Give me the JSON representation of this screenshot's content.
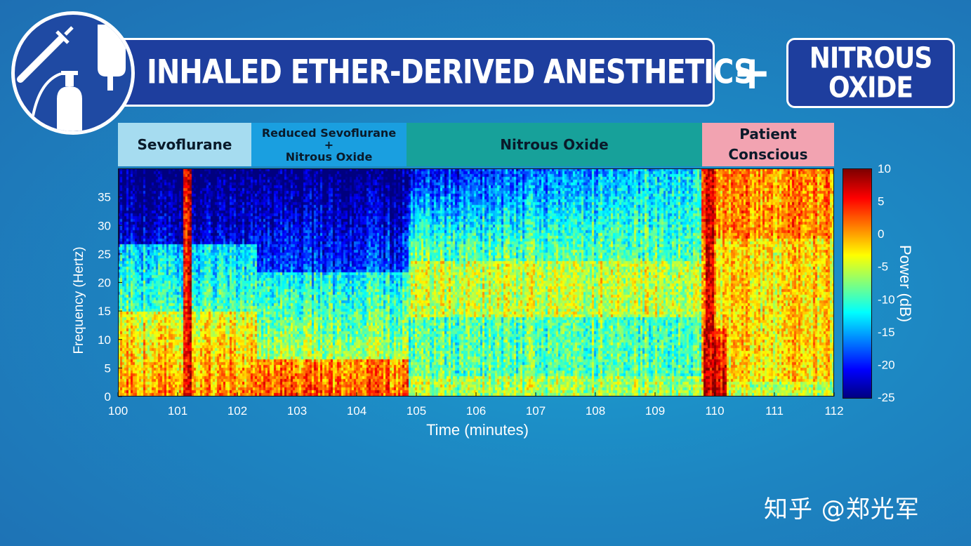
{
  "header": {
    "title": "INHALED ETHER-DERIVED ANESTHETICS",
    "plus": "+",
    "nitrous_line1": "NITROUS",
    "nitrous_line2": "OXIDE"
  },
  "logo": {
    "icons": [
      "syringe-icon",
      "iv-bag-icon",
      "gas-cylinder-icon"
    ]
  },
  "phases": [
    {
      "line1": "Sevoflurane",
      "line2": "",
      "line3": "",
      "color": "#a6dcf0"
    },
    {
      "line1": "Reduced Sevoflurane",
      "line2": "+",
      "line3": "Nitrous Oxide",
      "color": "#1a9fe0"
    },
    {
      "line1": "Nitrous Oxide",
      "line2": "",
      "line3": "",
      "color": "#17a19a"
    },
    {
      "line1": "Patient",
      "line2": "Conscious",
      "line3": "",
      "color": "#f2a3b1"
    }
  ],
  "chart_data": {
    "type": "heatmap",
    "xlabel": "Time (minutes)",
    "ylabel": "Frequency (Hertz)",
    "xlim": [
      100,
      112
    ],
    "ylim": [
      0,
      40
    ],
    "x_ticks": [
      100,
      101,
      102,
      103,
      104,
      105,
      106,
      107,
      108,
      109,
      110,
      111,
      112
    ],
    "y_ticks": [
      0,
      5,
      10,
      15,
      20,
      25,
      30,
      35
    ],
    "colorbar": {
      "label": "Power (dB)",
      "ticks": [
        10,
        5,
        0,
        -5,
        -10,
        -15,
        -20,
        -25
      ],
      "range": [
        -25,
        10
      ],
      "colormap": "jet"
    },
    "phase_boundaries": [
      {
        "label": "Sevoflurane",
        "start": 100.0,
        "end": 102.25
      },
      {
        "label": "Reduced Sevoflurane + Nitrous Oxide",
        "start": 102.25,
        "end": 104.85
      },
      {
        "label": "Nitrous Oxide",
        "start": 104.85,
        "end": 109.75
      },
      {
        "label": "Patient Conscious",
        "start": 109.75,
        "end": 112.0
      }
    ],
    "features": [
      {
        "note": "artifact spike",
        "time": 101.15,
        "power_db": 8
      },
      {
        "note": "waking artifact",
        "time": 109.9,
        "power_db": 8
      }
    ]
  },
  "watermark": "知乎 @郑光军"
}
